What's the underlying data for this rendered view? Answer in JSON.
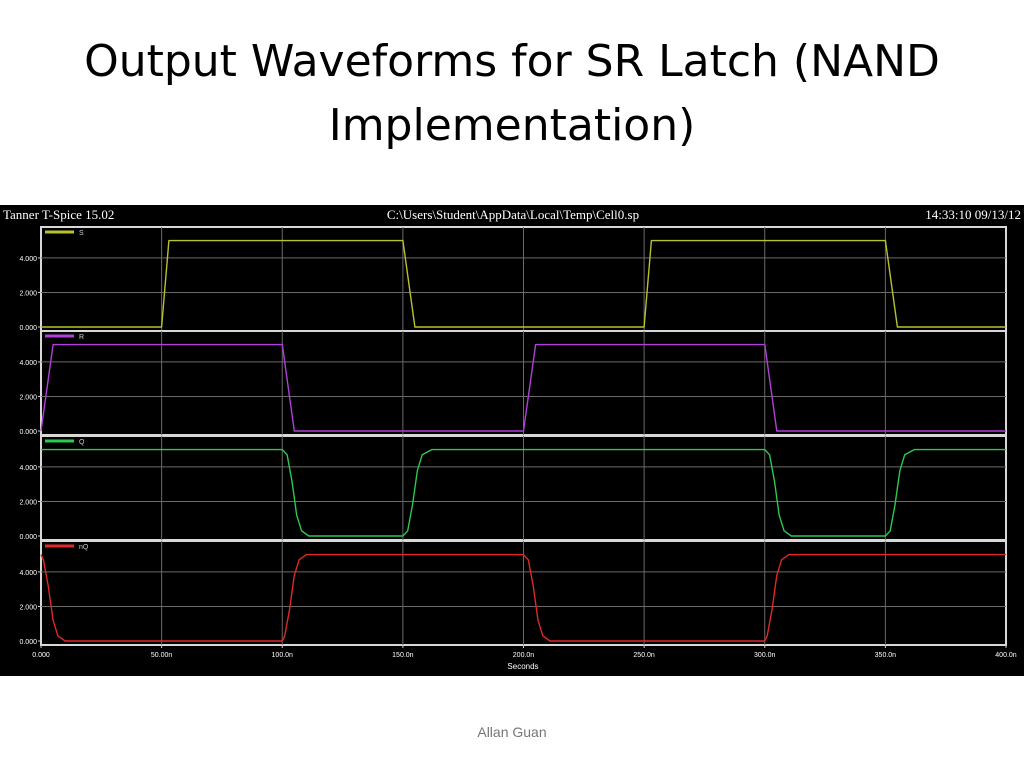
{
  "slide": {
    "title_line1": "Output Waveforms for SR Latch (NAND",
    "title_line2": "Implementation)",
    "footer": "Allan Guan"
  },
  "window": {
    "app": "Tanner T-Spice 15.02",
    "file": "C:\\Users\\Student\\AppData\\Local\\Temp\\Cell0.sp",
    "timestamp": "14:33:10 09/13/12"
  },
  "chart_data": {
    "type": "line",
    "title": "",
    "xlabel": "Seconds",
    "xlim": [
      0,
      400
    ],
    "x_unit": "ns",
    "x_ticks": [
      "0.000",
      "50.00n",
      "100.0n",
      "150.0n",
      "200.0n",
      "250.0n",
      "300.0n",
      "350.0n",
      "400.0n"
    ],
    "x_tick_values": [
      0,
      50,
      100,
      150,
      200,
      250,
      300,
      350,
      400
    ],
    "ylim": [
      0,
      5.5
    ],
    "y_ticks": [
      "0.000",
      "2.000",
      "4.000"
    ],
    "y_tick_values": [
      0,
      2,
      4
    ],
    "grid": true,
    "legend": "top-left of each panel",
    "panels": [
      {
        "name": "S",
        "color": "#b8c22a",
        "points": [
          [
            0,
            0
          ],
          [
            50,
            0
          ],
          [
            53,
            5
          ],
          [
            150,
            5
          ],
          [
            155,
            0
          ],
          [
            250,
            0
          ],
          [
            253,
            5
          ],
          [
            350,
            5
          ],
          [
            355,
            0
          ],
          [
            400,
            0
          ]
        ]
      },
      {
        "name": "R",
        "color": "#b040d8",
        "points": [
          [
            0,
            0
          ],
          [
            5,
            5
          ],
          [
            100,
            5
          ],
          [
            105,
            0
          ],
          [
            200,
            0
          ],
          [
            205,
            5
          ],
          [
            300,
            5
          ],
          [
            305,
            0
          ],
          [
            400,
            0
          ]
        ]
      },
      {
        "name": "Q",
        "color": "#2cc850",
        "points": [
          [
            0,
            5
          ],
          [
            100,
            5
          ],
          [
            102,
            4.7
          ],
          [
            104,
            3.2
          ],
          [
            106,
            1.2
          ],
          [
            108,
            0.3
          ],
          [
            111,
            0
          ],
          [
            150,
            0
          ],
          [
            152,
            0.3
          ],
          [
            154,
            1.8
          ],
          [
            156,
            3.8
          ],
          [
            158,
            4.7
          ],
          [
            162,
            5
          ],
          [
            300,
            5
          ],
          [
            302,
            4.7
          ],
          [
            304,
            3.2
          ],
          [
            306,
            1.2
          ],
          [
            308,
            0.3
          ],
          [
            311,
            0
          ],
          [
            350,
            0
          ],
          [
            352,
            0.3
          ],
          [
            354,
            1.8
          ],
          [
            356,
            3.8
          ],
          [
            358,
            4.7
          ],
          [
            362,
            5
          ],
          [
            400,
            5
          ]
        ]
      },
      {
        "name": "nQ",
        "color": "#e02828",
        "points": [
          [
            0,
            5
          ],
          [
            1,
            4.7
          ],
          [
            3,
            3.2
          ],
          [
            5,
            1.2
          ],
          [
            7,
            0.3
          ],
          [
            10,
            0
          ],
          [
            100,
            0
          ],
          [
            101,
            0.3
          ],
          [
            103,
            1.8
          ],
          [
            105,
            3.8
          ],
          [
            107,
            4.7
          ],
          [
            110,
            5
          ],
          [
            200,
            5
          ],
          [
            202,
            4.7
          ],
          [
            204,
            3.2
          ],
          [
            206,
            1.2
          ],
          [
            208,
            0.3
          ],
          [
            211,
            0
          ],
          [
            300,
            0
          ],
          [
            301,
            0.3
          ],
          [
            303,
            1.8
          ],
          [
            305,
            3.8
          ],
          [
            307,
            4.7
          ],
          [
            310,
            5
          ],
          [
            400,
            5
          ]
        ]
      }
    ]
  }
}
